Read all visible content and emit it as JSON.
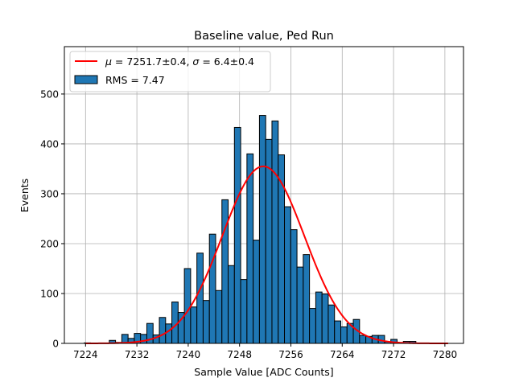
{
  "chart_data": {
    "type": "bar",
    "title": "Baseline value, Ped Run",
    "xlabel": "Sample Value [ADC Counts]",
    "ylabel": "Events",
    "xlim": [
      7220.7,
      7282.9
    ],
    "ylim": [
      0,
      595
    ],
    "xticks": [
      7224,
      7232,
      7240,
      7248,
      7256,
      7264,
      7272,
      7280
    ],
    "yticks": [
      0,
      100,
      200,
      300,
      400,
      500
    ],
    "grid": true,
    "legend_position": "top-left",
    "histogram": {
      "name": "RMS = 7.47",
      "bin_start": 7223.8,
      "bin_width": 0.975,
      "counts": [
        1,
        0,
        0,
        0,
        6,
        2,
        18,
        10,
        20,
        18,
        40,
        17,
        52,
        39,
        83,
        62,
        150,
        73,
        181,
        86,
        219,
        106,
        288,
        156,
        433,
        128,
        380,
        207,
        457,
        409,
        446,
        378,
        274,
        228,
        153,
        178,
        70,
        103,
        99,
        77,
        45,
        33,
        40,
        48,
        16,
        14,
        16,
        16,
        3,
        8,
        1,
        4,
        4
      ],
      "color": "#1f77b4"
    },
    "fit": {
      "name_mu_symbol": "μ",
      "name_mu_value": " = 7251.7±0.4, ",
      "name_sigma_symbol": "σ",
      "name_sigma_value": " = 6.4±0.4",
      "mu": 7251.7,
      "sigma": 6.4,
      "amplitude": 355,
      "x_range": [
        7224,
        7280.5
      ],
      "color": "#ff0000"
    }
  }
}
